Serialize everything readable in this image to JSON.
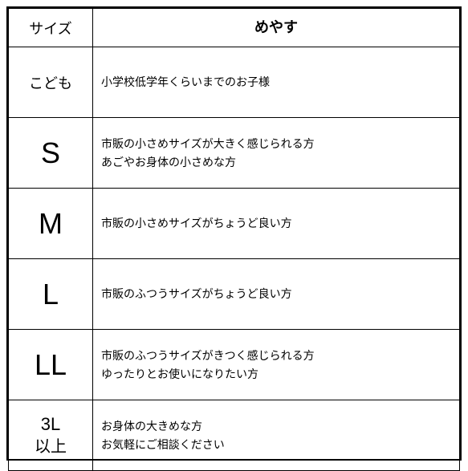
{
  "headers": {
    "size": "サイズ",
    "guide": "めやす"
  },
  "rows": [
    {
      "size": "こども",
      "desc": "小学校低学年くらいまでのお子様"
    },
    {
      "size": "S",
      "desc_line1": "市販の小さめサイズが大きく感じられる方",
      "desc_line2": "あごやお身体の小さめな方"
    },
    {
      "size": "M",
      "desc": "市販の小さめサイズがちょうど良い方"
    },
    {
      "size": "L",
      "desc": "市販のふつうサイズがちょうど良い方"
    },
    {
      "size": "LL",
      "desc_line1": "市販のふつうサイズがきつく感じられる方",
      "desc_line2": "ゆったりとお使いになりたい方"
    },
    {
      "size_line1": "3L",
      "size_line2": "以上",
      "desc_line1": "お身体の大きめな方",
      "desc_line2": "お気軽にご相談ください"
    }
  ],
  "colors": {
    "text": "#000000",
    "border": "#000000",
    "background": "#ffffff"
  }
}
